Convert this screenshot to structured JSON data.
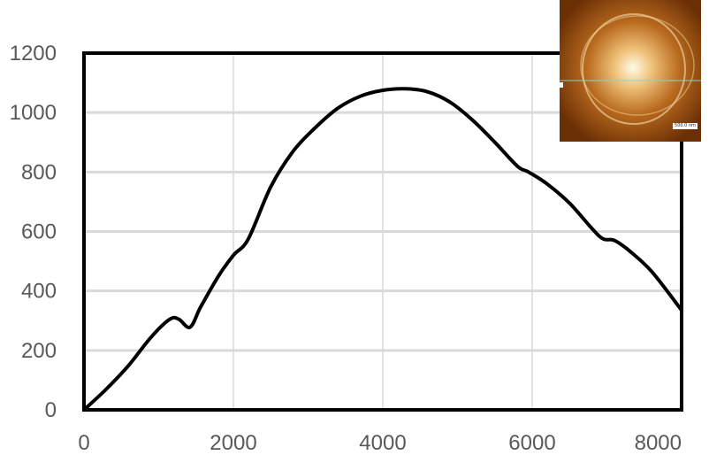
{
  "chart_data": {
    "type": "line",
    "title": "",
    "xlabel": "",
    "ylabel": "",
    "xlim": [
      0,
      8000
    ],
    "ylim": [
      0,
      1200
    ],
    "xticks": [
      0,
      2000,
      4000,
      6000,
      8000
    ],
    "yticks": [
      0,
      200,
      400,
      600,
      800,
      1000,
      1200
    ],
    "grid": true,
    "legend": "none",
    "series": [
      {
        "color": "#000000",
        "x": [
          0,
          300,
          600,
          900,
          1150,
          1270,
          1420,
          1560,
          1800,
          2000,
          2200,
          2500,
          2800,
          3100,
          3400,
          3700,
          4000,
          4300,
          4600,
          4900,
          5200,
          5500,
          5800,
          5950,
          6200,
          6500,
          6800,
          6950,
          7100,
          7300,
          7600,
          8000
        ],
        "y": [
          0,
          70,
          150,
          245,
          305,
          305,
          278,
          345,
          450,
          520,
          575,
          750,
          870,
          950,
          1015,
          1055,
          1075,
          1080,
          1070,
          1035,
          975,
          900,
          820,
          800,
          760,
          695,
          610,
          575,
          570,
          535,
          465,
          335
        ]
      }
    ]
  },
  "inset": {
    "description_icon": "afm-height-map-image",
    "colors": [
      "#6b2f05",
      "#b86a1e",
      "#f0c27a",
      "#fffbe8"
    ],
    "scalebar_label": "500.0 nm"
  }
}
